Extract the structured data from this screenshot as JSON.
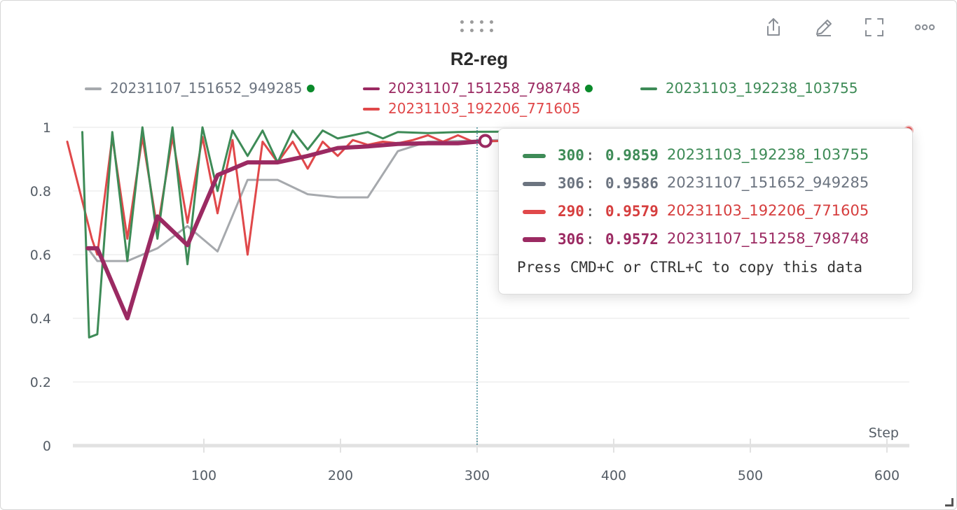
{
  "panel": {
    "title": "R2-reg",
    "toolbar": [
      {
        "name": "share-icon"
      },
      {
        "name": "edit-icon"
      },
      {
        "name": "fullscreen-icon"
      },
      {
        "name": "more-options-icon"
      }
    ]
  },
  "legend": [
    {
      "label": "20231107_151652_949285",
      "color": "#a6a9ad",
      "dot": true
    },
    {
      "label": "20231107_151258_798748",
      "color": "#9b2a62",
      "dot": true
    },
    {
      "label": "20231103_192238_103755",
      "color": "#3e8b57",
      "dot": false
    },
    {
      "label": "20231103_192206_771605",
      "color": "#e0484a",
      "dot": false
    }
  ],
  "tooltip": {
    "rows": [
      {
        "step": "300",
        "value": "0.9859",
        "name": "20231103_192238_103755",
        "color": "#3e8b57",
        "text_color": "#3e8b57",
        "width": 5
      },
      {
        "step": "306",
        "value": "0.9586",
        "name": "20231107_151652_949285",
        "color": "#6c7480",
        "text_color": "#6c7480",
        "width": 5
      },
      {
        "step": "290",
        "value": "0.9579",
        "name": "20231103_192206_771605",
        "color": "#e0484a",
        "text_color": "#d63e3e",
        "width": 5
      },
      {
        "step": "306",
        "value": "0.9572",
        "name": "20231107_151258_798748",
        "color": "#9b2a62",
        "text_color": "#9b2a62",
        "width": 6
      }
    ],
    "hint": "Press CMD+C or CTRL+C to copy this data"
  },
  "chart_data": {
    "type": "line",
    "title": "R2-reg",
    "xlabel": "Step",
    "ylabel": "",
    "xlim": [
      0,
      615
    ],
    "ylim": [
      0,
      1
    ],
    "x_ticks": [
      100,
      200,
      300,
      400,
      500,
      600
    ],
    "y_ticks": [
      0,
      0.2,
      0.4,
      0.6,
      0.8,
      1
    ],
    "y_tick_labels": [
      "0",
      "0.2",
      "0.4",
      "0.6",
      "0.8",
      "1"
    ],
    "x_tick_labels": [
      "100",
      "200",
      "300",
      "400",
      "500",
      "600"
    ],
    "hover_x": 300,
    "grid": "horizontal",
    "series": [
      {
        "name": "20231107_151652_949285",
        "color": "#a6a9ad",
        "stroke_width": 3,
        "x": [
          15,
          22,
          44,
          66,
          88,
          110,
          132,
          154,
          176,
          198,
          220,
          242,
          264,
          286,
          306,
          615
        ],
        "y": [
          0.62,
          0.58,
          0.58,
          0.62,
          0.69,
          0.61,
          0.835,
          0.835,
          0.79,
          0.78,
          0.78,
          0.925,
          0.955,
          0.957,
          0.9586,
          0.99
        ]
      },
      {
        "name": "20231103_192206_771605",
        "color": "#e0484a",
        "stroke_width": 3,
        "x": [
          0,
          18,
          22,
          33,
          44,
          55,
          66,
          77,
          88,
          99,
          110,
          121,
          132,
          143,
          154,
          165,
          176,
          187,
          198,
          209,
          220,
          231,
          242,
          253,
          264,
          275,
          286,
          297,
          615
        ],
        "y": [
          0.955,
          0.65,
          0.6,
          0.97,
          0.65,
          0.97,
          0.68,
          0.97,
          0.7,
          0.97,
          0.73,
          0.96,
          0.6,
          0.955,
          0.89,
          0.955,
          0.87,
          0.955,
          0.91,
          0.96,
          0.945,
          0.955,
          0.95,
          0.96,
          0.975,
          0.955,
          0.975,
          0.955,
          0.99
        ]
      },
      {
        "name": "20231103_192238_103755",
        "color": "#3e8b57",
        "stroke_width": 3,
        "x": [
          11,
          16,
          22,
          33,
          44,
          55,
          66,
          77,
          88,
          99,
          110,
          121,
          132,
          143,
          154,
          165,
          176,
          187,
          198,
          209,
          220,
          231,
          242,
          264,
          286,
          300,
          615
        ],
        "y": [
          0.985,
          0.34,
          0.35,
          0.985,
          0.58,
          1,
          0.65,
          1,
          0.57,
          1,
          0.8,
          0.99,
          0.91,
          0.99,
          0.89,
          0.99,
          0.93,
          0.99,
          0.965,
          0.975,
          0.985,
          0.965,
          0.985,
          0.982,
          0.985,
          0.9859,
          0.99
        ]
      },
      {
        "name": "20231107_151258_798748",
        "color": "#9b2a62",
        "stroke_width": 6,
        "x": [
          15,
          22,
          44,
          66,
          88,
          110,
          132,
          154,
          176,
          198,
          220,
          242,
          264,
          286,
          306
        ],
        "y": [
          0.62,
          0.62,
          0.4,
          0.72,
          0.63,
          0.85,
          0.89,
          0.89,
          0.91,
          0.935,
          0.94,
          0.948,
          0.95,
          0.95,
          0.9572
        ]
      }
    ]
  }
}
